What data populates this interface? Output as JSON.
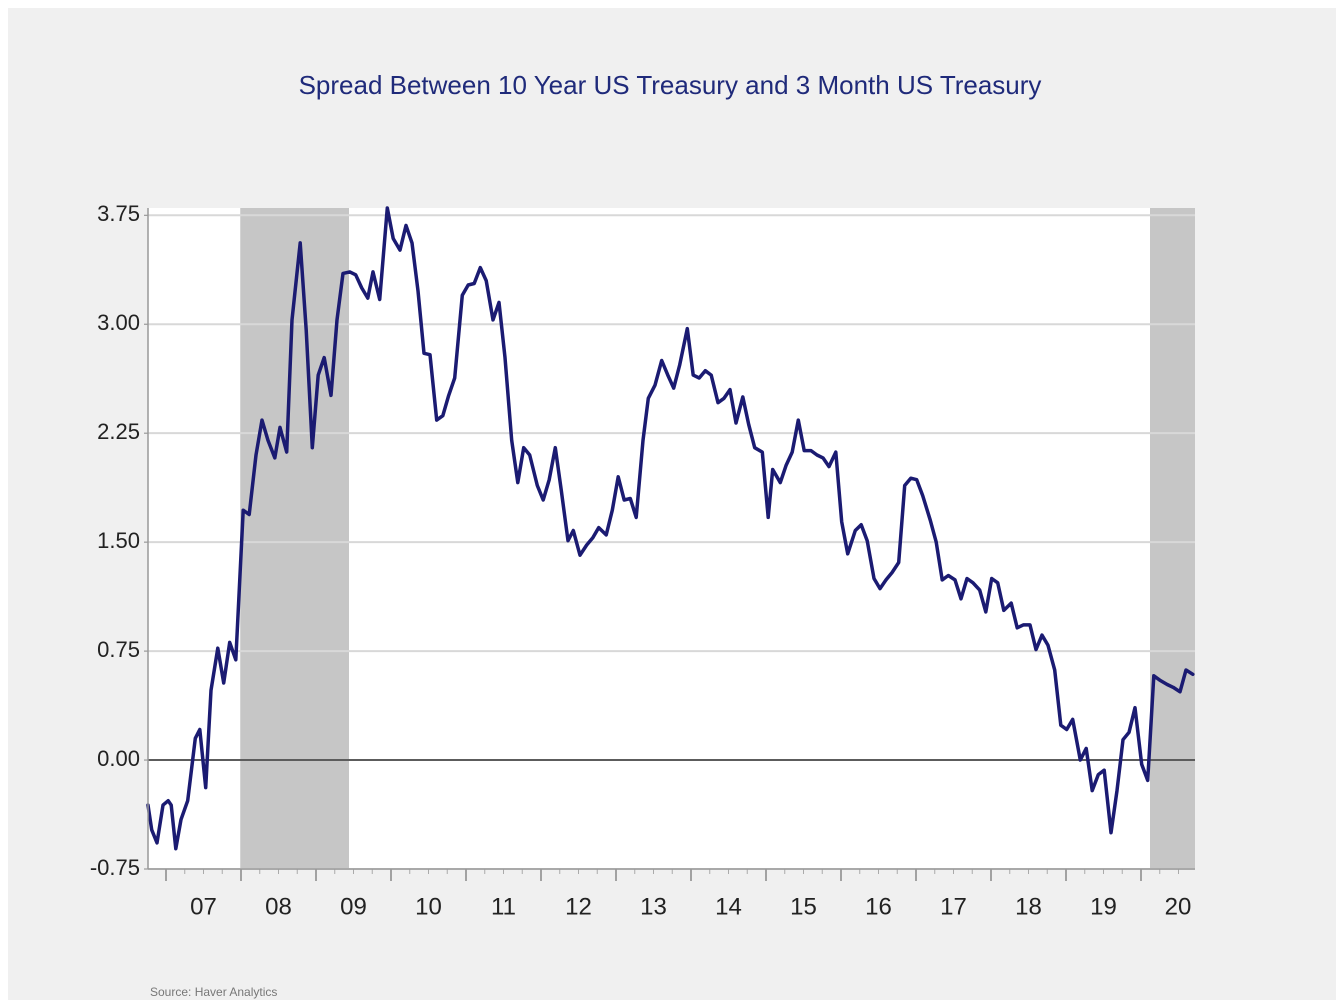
{
  "chart_data": {
    "type": "line",
    "title": "Spread Between 10 Year US Treasury and 3 Month US Treasury",
    "source": "Source:  Haver Analytics",
    "color": "#1b1b72",
    "grid": true,
    "zero_line": true,
    "xlim": [
      2006.76,
      2020.72
    ],
    "ylim": [
      -0.75,
      3.8
    ],
    "yticks": [
      3.75,
      {
        "value": 3.0,
        "label": "3.00"
      },
      2.25,
      {
        "value": 1.5,
        "label": "1.50"
      },
      0.75,
      {
        "value": 0,
        "label": "0.00"
      },
      -0.75
    ],
    "xticks": [
      {
        "value": 2007,
        "label": "07"
      },
      {
        "value": 2008,
        "label": "08"
      },
      {
        "value": 2009,
        "label": "09"
      },
      {
        "value": 2010,
        "label": "10"
      },
      {
        "value": 2011,
        "label": "11"
      },
      {
        "value": 2012,
        "label": "12"
      },
      {
        "value": 2013,
        "label": "13"
      },
      {
        "value": 2014,
        "label": "14"
      },
      {
        "value": 2015,
        "label": "15"
      },
      {
        "value": 2016,
        "label": "16"
      },
      {
        "value": 2017,
        "label": "17"
      },
      {
        "value": 2018,
        "label": "18"
      },
      {
        "value": 2019,
        "label": "19"
      },
      {
        "value": 2020,
        "label": "20"
      }
    ],
    "recessions": [
      [
        2007.99,
        2009.44
      ],
      [
        2020.12,
        2020.72
      ]
    ],
    "x": [
      2006.76,
      2006.81,
      2006.88,
      2006.96,
      2007.03,
      2007.07,
      2007.13,
      2007.2,
      2007.29,
      2007.39,
      2007.45,
      2007.53,
      2007.6,
      2007.69,
      2007.77,
      2007.85,
      2007.93,
      2008.03,
      2008.11,
      2008.2,
      2008.28,
      2008.36,
      2008.45,
      2008.52,
      2008.61,
      2008.68,
      2008.79,
      2008.87,
      2008.95,
      2009.03,
      2009.11,
      2009.2,
      2009.28,
      2009.36,
      2009.45,
      2009.53,
      2009.61,
      2009.69,
      2009.76,
      2009.85,
      2009.95,
      2010.03,
      2010.12,
      2010.2,
      2010.28,
      2010.36,
      2010.44,
      2010.52,
      2010.61,
      2010.69,
      2010.77,
      2010.85,
      2010.95,
      2011.03,
      2011.11,
      2011.19,
      2011.27,
      2011.36,
      2011.44,
      2011.52,
      2011.61,
      2011.69,
      2011.77,
      2011.85,
      2011.95,
      2012.03,
      2012.11,
      2012.19,
      2012.27,
      2012.36,
      2012.43,
      2012.52,
      2012.61,
      2012.69,
      2012.77,
      2012.87,
      2012.95,
      2013.03,
      2013.11,
      2013.19,
      2013.27,
      2013.36,
      2013.43,
      2013.52,
      2013.61,
      2013.69,
      2013.77,
      2013.85,
      2013.95,
      2014.03,
      2014.11,
      2014.19,
      2014.27,
      2014.36,
      2014.44,
      2014.52,
      2014.6,
      2014.69,
      2014.77,
      2014.85,
      2014.95,
      2015.03,
      2015.09,
      2015.19,
      2015.27,
      2015.35,
      2015.43,
      2015.51,
      2015.6,
      2015.68,
      2015.76,
      2015.84,
      2015.93,
      2016.01,
      2016.09,
      2016.19,
      2016.27,
      2016.35,
      2016.44,
      2016.52,
      2016.6,
      2016.68,
      2016.77,
      2016.85,
      2016.93,
      2017.01,
      2017.09,
      2017.19,
      2017.27,
      2017.35,
      2017.43,
      2017.52,
      2017.6,
      2017.68,
      2017.76,
      2017.85,
      2017.93,
      2018.01,
      2018.09,
      2018.17,
      2018.27,
      2018.35,
      2018.43,
      2018.52,
      2018.6,
      2018.68,
      2018.76,
      2018.85,
      2018.93,
      2019.01,
      2019.09,
      2019.19,
      2019.27,
      2019.35,
      2019.43,
      2019.51,
      2019.6,
      2019.68,
      2019.76,
      2019.84,
      2019.92,
      2020.01,
      2020.09,
      2020.17,
      2020.25,
      2020.35,
      2020.43,
      2020.52,
      2020.6,
      2020.69
    ],
    "values": [
      -0.31,
      -0.48,
      -0.57,
      -0.31,
      -0.28,
      -0.31,
      -0.61,
      -0.41,
      -0.28,
      0.15,
      0.21,
      -0.19,
      0.48,
      0.77,
      0.53,
      0.81,
      0.69,
      1.72,
      1.69,
      2.1,
      2.34,
      2.2,
      2.08,
      2.29,
      2.12,
      3.03,
      3.56,
      2.96,
      2.15,
      2.65,
      2.77,
      2.51,
      3.03,
      3.35,
      3.36,
      3.34,
      3.25,
      3.18,
      3.36,
      3.17,
      3.8,
      3.59,
      3.51,
      3.68,
      3.56,
      3.23,
      2.8,
      2.79,
      2.34,
      2.37,
      2.51,
      2.63,
      3.2,
      3.27,
      3.28,
      3.39,
      3.3,
      3.03,
      3.15,
      2.77,
      2.2,
      1.91,
      2.15,
      2.1,
      1.89,
      1.79,
      1.93,
      2.15,
      1.86,
      1.51,
      1.58,
      1.41,
      1.48,
      1.53,
      1.6,
      1.55,
      1.72,
      1.95,
      1.79,
      1.8,
      1.67,
      2.2,
      2.49,
      2.58,
      2.75,
      2.65,
      2.56,
      2.72,
      2.97,
      2.65,
      2.63,
      2.68,
      2.65,
      2.46,
      2.49,
      2.55,
      2.32,
      2.5,
      2.31,
      2.15,
      2.12,
      1.67,
      2.0,
      1.91,
      2.03,
      2.12,
      2.34,
      2.13,
      2.13,
      2.1,
      2.08,
      2.02,
      2.12,
      1.64,
      1.42,
      1.58,
      1.62,
      1.51,
      1.25,
      1.18,
      1.24,
      1.29,
      1.36,
      1.89,
      1.94,
      1.93,
      1.82,
      1.65,
      1.5,
      1.24,
      1.27,
      1.24,
      1.11,
      1.25,
      1.22,
      1.17,
      1.02,
      1.25,
      1.22,
      1.03,
      1.08,
      0.91,
      0.93,
      0.93,
      0.76,
      0.86,
      0.79,
      0.62,
      0.24,
      0.21,
      0.28,
      0.0,
      0.08,
      -0.21,
      -0.1,
      -0.07,
      -0.5,
      -0.21,
      0.14,
      0.19,
      0.36,
      -0.03,
      -0.14,
      0.58,
      0.55,
      0.52,
      0.5,
      0.47,
      0.62,
      0.59
    ]
  }
}
